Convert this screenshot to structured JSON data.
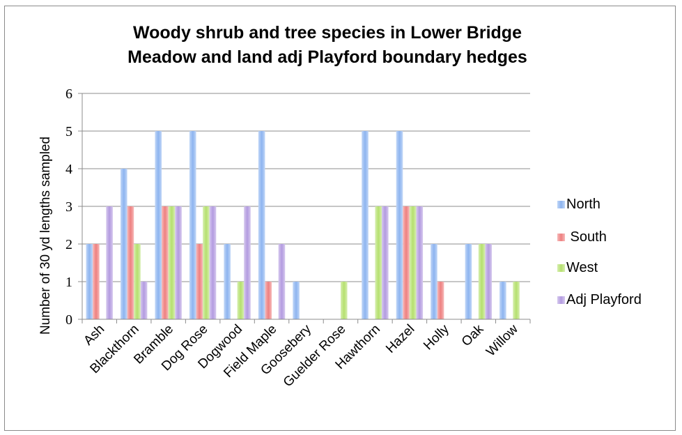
{
  "chart_data": {
    "type": "bar",
    "title": "Woody shrub and tree species in Lower Bridge\nMeadow and land adj Playford boundary hedges",
    "xlabel": "",
    "ylabel": "Number  of 30 yd lengths sampled",
    "ylim": [
      0,
      6
    ],
    "yticks": [
      "0",
      "1",
      "2",
      "3",
      "4",
      "5",
      "6"
    ],
    "grid": true,
    "legend_position": "right",
    "categories": [
      "Ash",
      "Blackthorn",
      "Bramble",
      "Dog Rose",
      "Dogwood",
      "Field Maple",
      "Goosebery",
      "Guelder Rose",
      "Hawthorn",
      "Hazel",
      "Holly",
      "Oak",
      "Willow"
    ],
    "series": [
      {
        "name": "North",
        "color": "#8db4f0",
        "values": [
          2,
          4,
          5,
          5,
          2,
          5,
          1,
          0,
          5,
          5,
          2,
          2,
          1
        ]
      },
      {
        "name": " South",
        "color": "#ee8080",
        "values": [
          2,
          3,
          3,
          2,
          0,
          1,
          0,
          0,
          0,
          3,
          1,
          0,
          0
        ]
      },
      {
        "name": "West",
        "color": "#b5e06e",
        "values": [
          0,
          2,
          3,
          3,
          1,
          0,
          0,
          1,
          3,
          3,
          0,
          2,
          1
        ]
      },
      {
        "name": "Adj Playford",
        "color": "#b39be0",
        "values": [
          3,
          1,
          3,
          3,
          3,
          2,
          0,
          0,
          3,
          3,
          0,
          2,
          0
        ]
      }
    ]
  }
}
